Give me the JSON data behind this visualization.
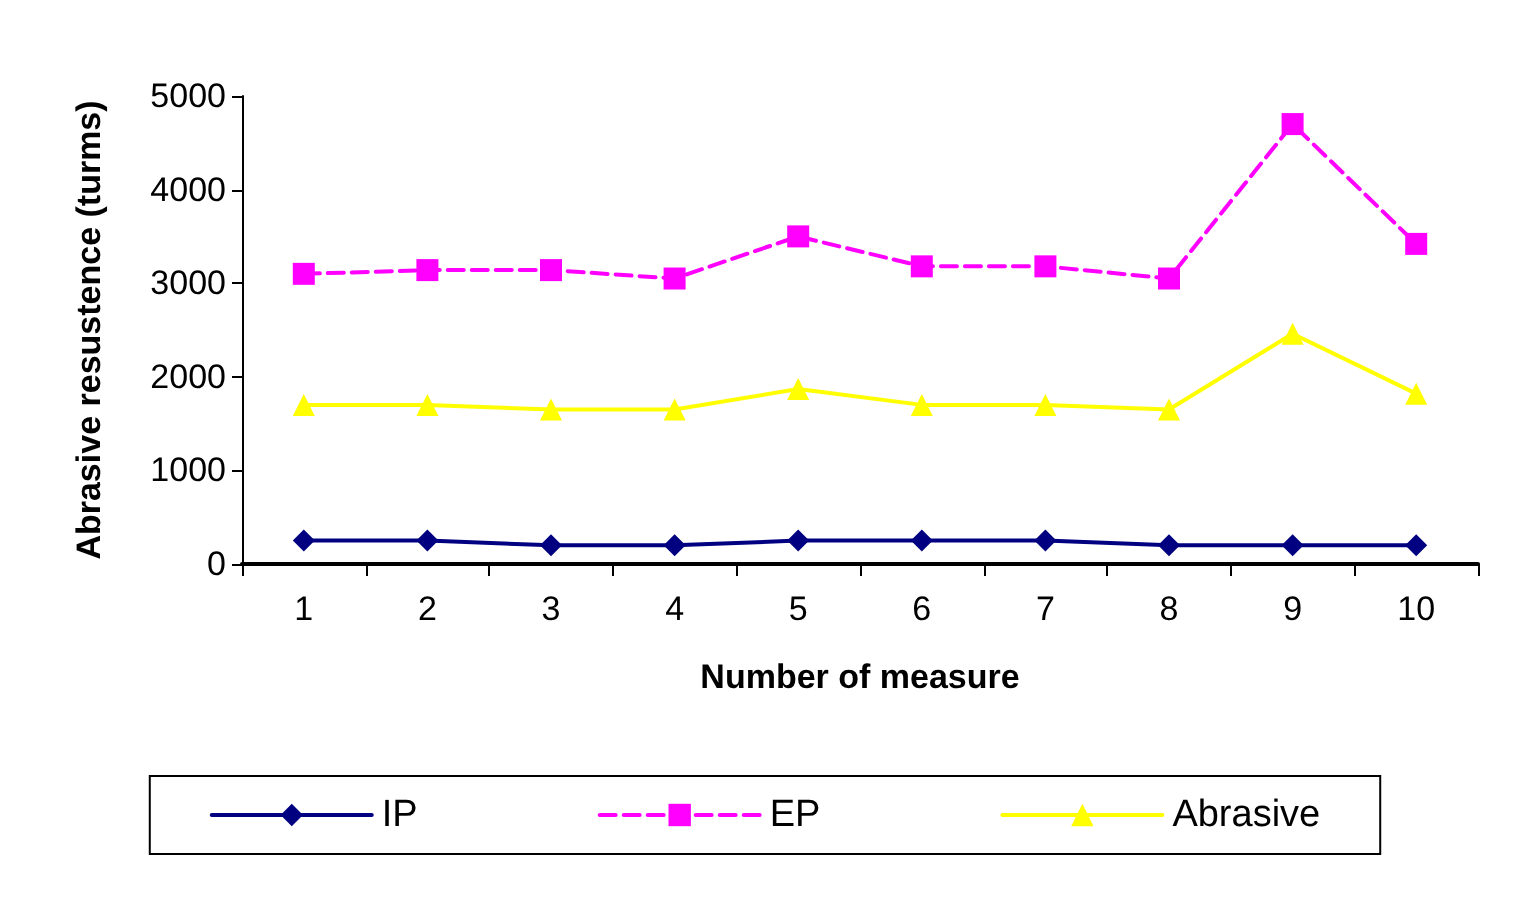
{
  "chart_data": {
    "type": "line",
    "xlabel": "Number of measure",
    "ylabel": "Abrasive resustence (turms)",
    "categories": [
      "1",
      "2",
      "3",
      "4",
      "5",
      "6",
      "7",
      "8",
      "9",
      "10"
    ],
    "ylim": [
      0,
      5000
    ],
    "yticks": [
      0,
      1000,
      2000,
      3000,
      4000,
      5000
    ],
    "grid": false,
    "legend": "bottom",
    "series": [
      {
        "name": "IP",
        "color": "#000080",
        "marker": "diamond",
        "line_style": "solid",
        "values": [
          250,
          250,
          200,
          200,
          250,
          250,
          250,
          200,
          200,
          200
        ]
      },
      {
        "name": "EP",
        "color": "#ff00ff",
        "marker": "square",
        "line_style": "dashed",
        "values": [
          3100,
          3140,
          3140,
          3050,
          3500,
          3180,
          3180,
          3050,
          4700,
          3420
        ]
      },
      {
        "name": "Abrasive",
        "color": "#ffff00",
        "marker": "triangle",
        "line_style": "solid",
        "values": [
          1700,
          1700,
          1650,
          1650,
          1870,
          1700,
          1700,
          1650,
          2460,
          1820
        ]
      }
    ]
  }
}
